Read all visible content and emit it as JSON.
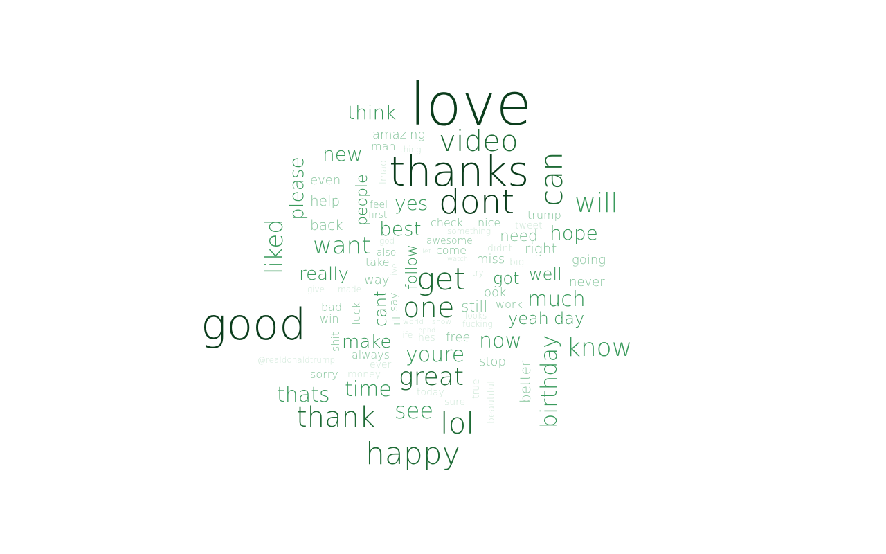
{
  "word_cloud": {
    "words": [
      {
        "text": "love",
        "weight": 100
      },
      {
        "text": "thanks",
        "weight": 88
      },
      {
        "text": "good",
        "weight": 92
      },
      {
        "text": "dont",
        "weight": 84
      },
      {
        "text": "video",
        "weight": 70
      },
      {
        "text": "can",
        "weight": 72
      },
      {
        "text": "get",
        "weight": 72
      },
      {
        "text": "lol",
        "weight": 70
      },
      {
        "text": "happy",
        "weight": 68
      },
      {
        "text": "one",
        "weight": 64
      },
      {
        "text": "great",
        "weight": 62
      },
      {
        "text": "thank",
        "weight": 62
      },
      {
        "text": "know",
        "weight": 58
      },
      {
        "text": "will",
        "weight": 58
      },
      {
        "text": "birthday",
        "weight": 56
      },
      {
        "text": "want",
        "weight": 56
      },
      {
        "text": "liked",
        "weight": 55
      },
      {
        "text": "youre",
        "weight": 54
      },
      {
        "text": "much",
        "weight": 54
      },
      {
        "text": "please",
        "weight": 52
      },
      {
        "text": "see",
        "weight": 52
      },
      {
        "text": "now",
        "weight": 52
      },
      {
        "text": "yes",
        "weight": 50
      },
      {
        "text": "best",
        "weight": 50
      },
      {
        "text": "hope",
        "weight": 48
      },
      {
        "text": "thats",
        "weight": 48
      },
      {
        "text": "time",
        "weight": 48
      },
      {
        "text": "new",
        "weight": 46
      },
      {
        "text": "think",
        "weight": 46
      },
      {
        "text": "make",
        "weight": 46
      },
      {
        "text": "yeah",
        "weight": 44
      },
      {
        "text": "day",
        "weight": 44
      },
      {
        "text": "really",
        "weight": 44
      },
      {
        "text": "well",
        "weight": 42
      },
      {
        "text": "got",
        "weight": 42
      },
      {
        "text": "cant",
        "weight": 42
      },
      {
        "text": "people",
        "weight": 40
      },
      {
        "text": "follow",
        "weight": 40
      },
      {
        "text": "still",
        "weight": 38
      },
      {
        "text": "need",
        "weight": 38
      },
      {
        "text": "right",
        "weight": 36
      },
      {
        "text": "better",
        "weight": 36
      },
      {
        "text": "amazing",
        "weight": 36
      },
      {
        "text": "back",
        "weight": 36
      },
      {
        "text": "help",
        "weight": 36
      },
      {
        "text": "even",
        "weight": 36
      },
      {
        "text": "never",
        "weight": 34
      },
      {
        "text": "going",
        "weight": 34
      },
      {
        "text": "way",
        "weight": 34
      },
      {
        "text": "look",
        "weight": 34
      },
      {
        "text": "free",
        "weight": 34
      },
      {
        "text": "stop",
        "weight": 34
      },
      {
        "text": "miss",
        "weight": 34
      },
      {
        "text": "trump",
        "weight": 32
      },
      {
        "text": "nice",
        "weight": 32
      },
      {
        "text": "check",
        "weight": 32
      },
      {
        "text": "come",
        "weight": 32
      },
      {
        "text": "work",
        "weight": 32
      },
      {
        "text": "sorry",
        "weight": 32
      },
      {
        "text": "win",
        "weight": 32
      },
      {
        "text": "bad",
        "weight": 32
      },
      {
        "text": "shit",
        "weight": 30
      },
      {
        "text": "fuck",
        "weight": 30
      },
      {
        "text": "ill",
        "weight": 30
      },
      {
        "text": "say",
        "weight": 30
      },
      {
        "text": "always",
        "weight": 30
      },
      {
        "text": "awesome",
        "weight": 30
      },
      {
        "text": "man",
        "weight": 30
      },
      {
        "text": "take",
        "weight": 30
      },
      {
        "text": "feel",
        "weight": 30
      },
      {
        "text": "first",
        "weight": 30
      },
      {
        "text": "also",
        "weight": 30
      },
      {
        "text": "didnt",
        "weight": 28
      },
      {
        "text": "big",
        "weight": 28
      },
      {
        "text": "tweet",
        "weight": 28
      },
      {
        "text": "lmao",
        "weight": 28
      },
      {
        "text": "hes",
        "weight": 28
      },
      {
        "text": "today",
        "weight": 28
      },
      {
        "text": "money",
        "weight": 28
      },
      {
        "text": "ever",
        "weight": 28
      },
      {
        "text": "sure",
        "weight": 28
      },
      {
        "text": "true",
        "weight": 26
      },
      {
        "text": "beautiful",
        "weight": 26
      },
      {
        "text": "looks",
        "weight": 26
      },
      {
        "text": "fucking",
        "weight": 26
      },
      {
        "text": "made",
        "weight": 26
      },
      {
        "text": "give",
        "weight": 26
      },
      {
        "text": "life",
        "weight": 26
      },
      {
        "text": "try",
        "weight": 24
      },
      {
        "text": "ive",
        "weight": 24
      },
      {
        "text": "god",
        "weight": 24
      },
      {
        "text": "let",
        "weight": 24
      },
      {
        "text": "watch",
        "weight": 24
      },
      {
        "text": "something",
        "weight": 24
      },
      {
        "text": "thing",
        "weight": 24
      },
      {
        "text": "world",
        "weight": 24
      },
      {
        "text": "show",
        "weight": 24
      },
      {
        "text": "bphd",
        "weight": 22
      },
      {
        "text": "@realdonaldtrump",
        "weight": 24
      }
    ],
    "colors": {
      "darkest": "#0b3d1c",
      "dark": "#1e6b35",
      "medium": "#3a9a5c",
      "light": "#86c49c",
      "lightest": "#cfe8d8"
    }
  }
}
